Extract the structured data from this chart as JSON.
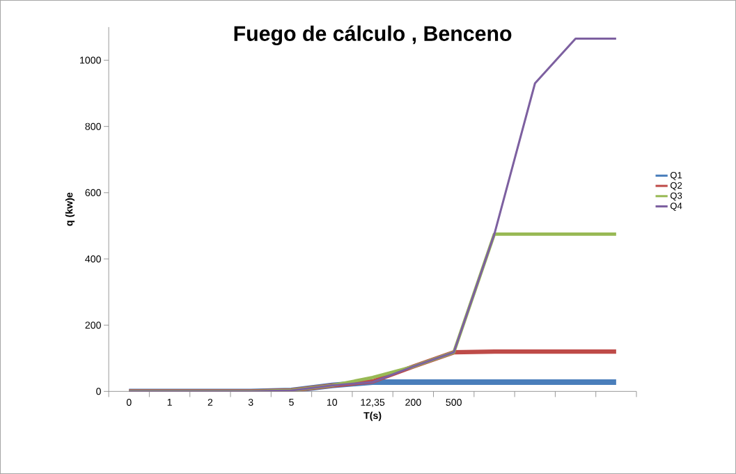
{
  "chart_data": {
    "type": "line",
    "title": "Fuego de cálculo , Benceno",
    "xlabel": "T(s)",
    "ylabel": "q (kw)e",
    "categories": [
      "0",
      "1",
      "2",
      "3",
      "5",
      "10",
      "12,35",
      "200",
      "500",
      null,
      null,
      null,
      null
    ],
    "series": [
      {
        "name": "Q1",
        "color": "#4a7ebb",
        "values": [
          0,
          0,
          0,
          0,
          3,
          18,
          28,
          28,
          28,
          28,
          28,
          28,
          28
        ]
      },
      {
        "name": "Q2",
        "color": "#be4b48",
        "values": [
          0,
          0,
          0,
          0,
          3,
          18,
          30,
          75,
          118,
          120,
          120,
          120,
          120
        ]
      },
      {
        "name": "Q3",
        "color": "#98b954",
        "values": [
          0,
          0,
          0,
          0,
          3,
          18,
          42,
          75,
          118,
          475,
          475,
          475,
          475
        ]
      },
      {
        "name": "Q4",
        "color": "#7d60a0",
        "values": [
          0,
          0,
          0,
          0,
          3,
          18,
          28,
          75,
          118,
          475,
          930,
          1065,
          1065
        ]
      }
    ],
    "ylim": [
      0,
      1100
    ],
    "yticks": [
      0,
      200,
      400,
      600,
      800,
      1000
    ],
    "legend": "right"
  }
}
